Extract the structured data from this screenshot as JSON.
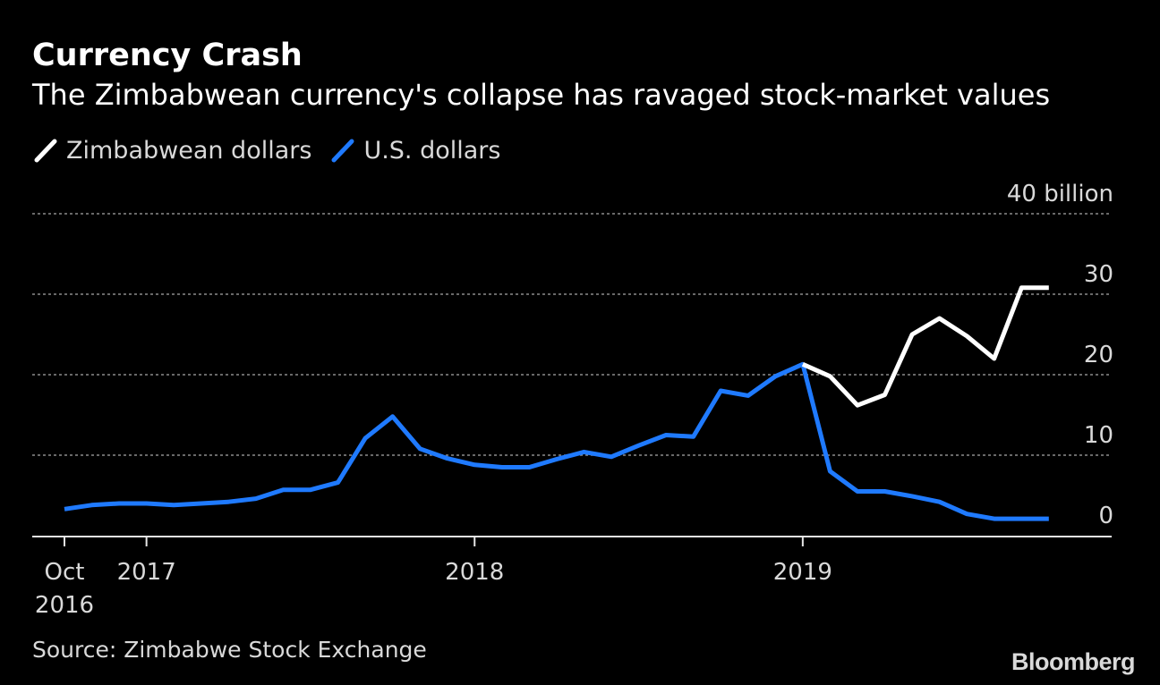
{
  "title": "Currency Crash",
  "subtitle": "The Zimbabwean currency's collapse has ravaged stock-market values",
  "source": "Source: Zimbabwe Stock Exchange",
  "brand": "Bloomberg",
  "colors": {
    "background": "#000000",
    "zwl_line": "#ffffff",
    "usd_line": "#1f7aff",
    "grid": "#8c8c8c",
    "text": "#d9d9d9"
  },
  "chart_data": {
    "type": "line",
    "title": "Currency Crash",
    "subtitle": "The Zimbabwean currency's collapse has ravaged stock-market values",
    "ylabel": "",
    "xlabel": "",
    "ylim": [
      0,
      40
    ],
    "y_unit_label": "billion",
    "y_ticks": [
      "40 billion",
      "30",
      "20",
      "10",
      "0"
    ],
    "y_tick_values": [
      40,
      30,
      20,
      10,
      0
    ],
    "x_tick_labels": [
      {
        "line1": "Oct",
        "line2": "2016",
        "date": "2016-10"
      },
      {
        "line1": "2017",
        "line2": "",
        "date": "2017-01"
      },
      {
        "line1": "2018",
        "line2": "",
        "date": "2018-01"
      },
      {
        "line1": "2019",
        "line2": "",
        "date": "2019-01"
      }
    ],
    "grid": true,
    "legend": "top-left",
    "x": [
      "2016-10",
      "2016-11",
      "2016-12",
      "2017-01",
      "2017-02",
      "2017-03",
      "2017-04",
      "2017-05",
      "2017-06",
      "2017-07",
      "2017-08",
      "2017-09",
      "2017-10",
      "2017-11",
      "2017-12",
      "2018-01",
      "2018-02",
      "2018-03",
      "2018-04",
      "2018-05",
      "2018-06",
      "2018-07",
      "2018-08",
      "2018-09",
      "2018-10",
      "2018-11",
      "2018-12",
      "2019-01",
      "2019-02",
      "2019-03",
      "2019-04",
      "2019-05",
      "2019-06",
      "2019-07",
      "2019-08",
      "2019-09",
      "2019-10"
    ],
    "series": [
      {
        "name": "Zimbabwean dollars",
        "color": "#ffffff",
        "values": [
          null,
          null,
          null,
          null,
          null,
          null,
          null,
          null,
          null,
          null,
          null,
          null,
          null,
          null,
          null,
          null,
          null,
          null,
          null,
          null,
          null,
          null,
          null,
          null,
          null,
          null,
          null,
          21.3,
          19.8,
          16.2,
          17.5,
          25.0,
          27.0,
          24.8,
          22.0,
          30.8,
          30.8
        ]
      },
      {
        "name": "U.S. dollars",
        "color": "#1f7aff",
        "values": [
          3.3,
          3.8,
          4.0,
          4.0,
          3.8,
          4.0,
          4.2,
          4.6,
          5.7,
          5.7,
          6.6,
          12.1,
          14.8,
          10.8,
          9.6,
          8.8,
          8.5,
          8.5,
          9.5,
          10.4,
          9.8,
          11.2,
          12.5,
          12.3,
          18.0,
          17.4,
          19.8,
          21.3,
          8.0,
          5.5,
          5.5,
          4.9,
          4.2,
          2.7,
          2.1,
          2.1,
          2.1
        ]
      }
    ]
  }
}
